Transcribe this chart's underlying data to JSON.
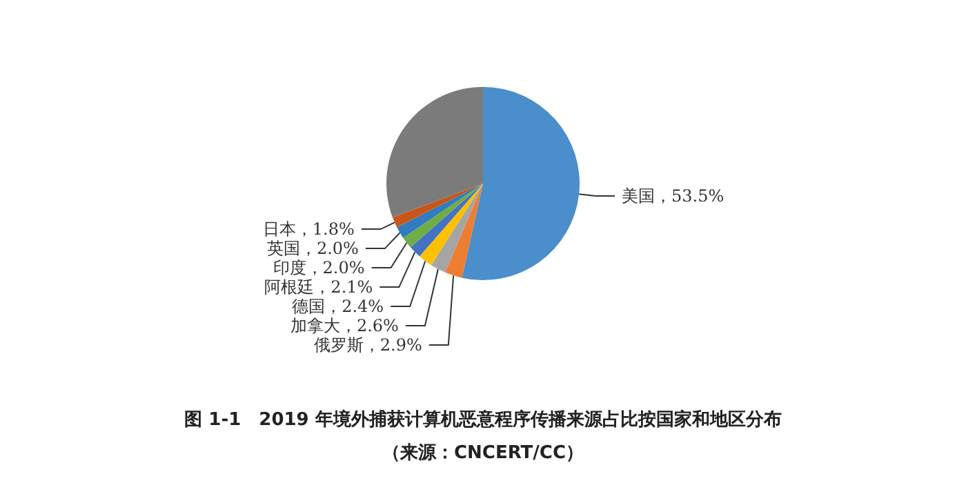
{
  "chart_data": {
    "type": "pie",
    "title": "图 1-1　2019 年境外捕获计算机恶意程序传播来源占比按国家和地区分布",
    "subtitle": "（来源：CNCERT/CC）",
    "categories": [
      "美国",
      "俄罗斯",
      "加拿大",
      "德国",
      "阿根廷",
      "印度",
      "英国",
      "日本",
      null
    ],
    "values": [
      53.5,
      2.9,
      2.6,
      2.4,
      2.1,
      2.0,
      2.0,
      1.8,
      30.7
    ],
    "value_labels": [
      "53.5%",
      "2.9%",
      "2.6%",
      "2.4%",
      "2.1%",
      "2.0%",
      "2.0%",
      "1.8%",
      null
    ],
    "colors": [
      "#4a8ecb",
      "#ed7d31",
      "#a5a5a5",
      "#ffc000",
      "#4472c4",
      "#70ad47",
      "#2f7cc0",
      "#c8561a",
      "#7b7b7b"
    ],
    "legend": false
  }
}
